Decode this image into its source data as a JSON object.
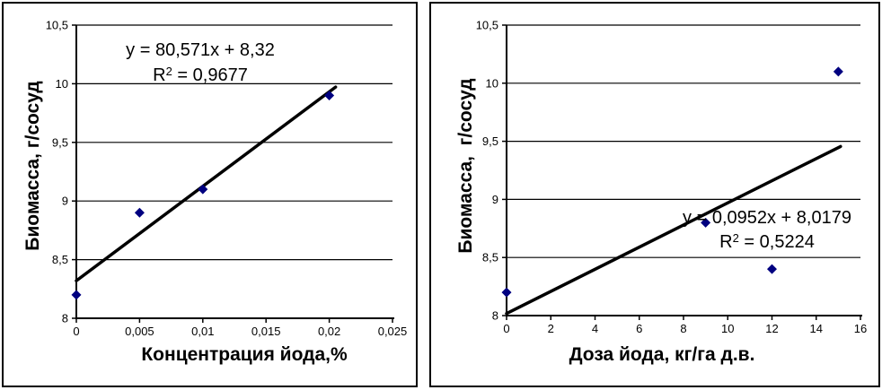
{
  "chart_data": [
    {
      "type": "scatter",
      "title": "",
      "xlabel": "Концентрация йода,%",
      "ylabel": "Биомасса, г/сосуд",
      "x": [
        0,
        0.005,
        0.01,
        0.02
      ],
      "y": [
        8.2,
        8.9,
        9.1,
        9.9
      ],
      "xlim": [
        0,
        0.025
      ],
      "ylim": [
        8,
        10.5
      ],
      "x_ticks": [
        {
          "value": 0,
          "label": "0"
        },
        {
          "value": 0.005,
          "label": "0,005"
        },
        {
          "value": 0.01,
          "label": "0,01"
        },
        {
          "value": 0.015,
          "label": "0,015"
        },
        {
          "value": 0.02,
          "label": "0,02"
        },
        {
          "value": 0.025,
          "label": "0,025"
        }
      ],
      "y_ticks": [
        {
          "value": 8,
          "label": "8"
        },
        {
          "value": 8.5,
          "label": "8,5"
        },
        {
          "value": 9,
          "label": "9"
        },
        {
          "value": 9.5,
          "label": "9,5"
        },
        {
          "value": 10,
          "label": "10"
        },
        {
          "value": 10.5,
          "label": "10,5"
        }
      ],
      "grid": "horizontal",
      "legend": "none",
      "marker": {
        "shape": "diamond",
        "color": "#000080"
      },
      "trendline": {
        "type": "linear",
        "slope": 80.571,
        "intercept": 8.32,
        "x_start": 0,
        "x_end": 0.0205,
        "color": "#000000",
        "equation": "y = 80,571x + 8,32",
        "r2_base": "R",
        "r2_sup": "2",
        "r2_rest": " = 0,9677"
      }
    },
    {
      "type": "scatter",
      "title": "",
      "xlabel": "Доза йода, кг/га д.в.",
      "ylabel": "Биомасса,  г/сосуд",
      "x": [
        0,
        9,
        12,
        15
      ],
      "y": [
        8.2,
        8.8,
        8.4,
        10.1
      ],
      "xlim": [
        0,
        16
      ],
      "ylim": [
        8,
        10.5
      ],
      "x_ticks": [
        {
          "value": 0,
          "label": "0"
        },
        {
          "value": 2,
          "label": "2"
        },
        {
          "value": 4,
          "label": "4"
        },
        {
          "value": 6,
          "label": "6"
        },
        {
          "value": 8,
          "label": "8"
        },
        {
          "value": 10,
          "label": "10"
        },
        {
          "value": 12,
          "label": "12"
        },
        {
          "value": 14,
          "label": "14"
        },
        {
          "value": 16,
          "label": "16"
        }
      ],
      "y_ticks": [
        {
          "value": 8,
          "label": "8"
        },
        {
          "value": 8.5,
          "label": "8,5"
        },
        {
          "value": 9,
          "label": "9"
        },
        {
          "value": 9.5,
          "label": "9,5"
        },
        {
          "value": 10,
          "label": "10"
        },
        {
          "value": 10.5,
          "label": "10,5"
        }
      ],
      "grid": "horizontal",
      "legend": "none",
      "marker": {
        "shape": "diamond",
        "color": "#000080"
      },
      "trendline": {
        "type": "linear",
        "slope": 0.0952,
        "intercept": 8.0179,
        "x_start": 0,
        "x_end": 15.1,
        "color": "#000000",
        "equation": "y = 0,0952x + 8,0179",
        "r2_base": "R",
        "r2_sup": "2",
        "r2_rest": " = 0,5224"
      }
    }
  ]
}
